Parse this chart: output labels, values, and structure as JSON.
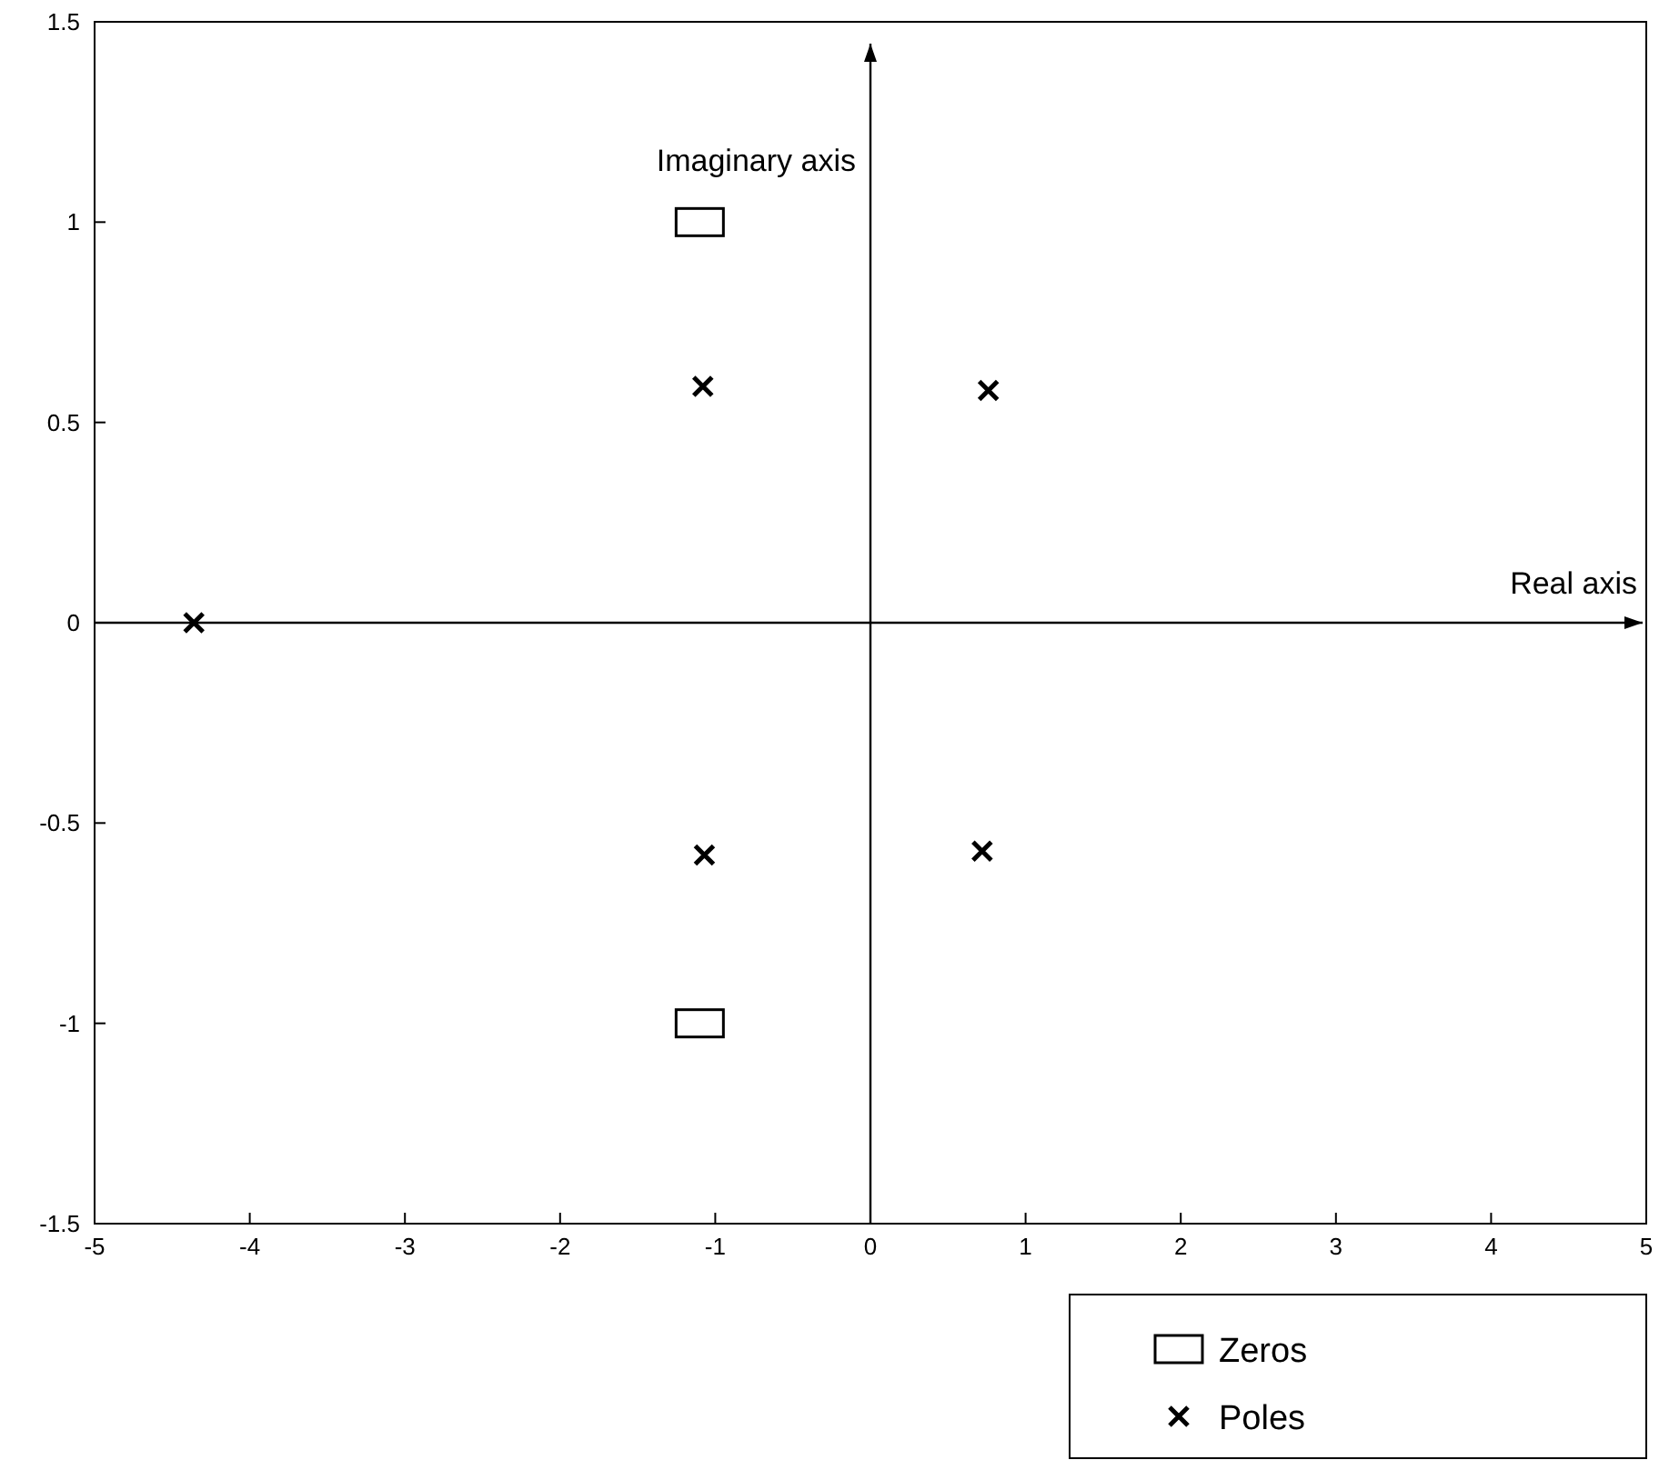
{
  "chart_data": {
    "type": "scatter",
    "xlim": [
      -5,
      5
    ],
    "ylim": [
      -1.5,
      1.5
    ],
    "xticks": [
      -5,
      -4,
      -3,
      -2,
      -1,
      0,
      1,
      2,
      3,
      4,
      5
    ],
    "yticks": [
      -1.5,
      -1,
      -0.5,
      0,
      0.5,
      1,
      1.5
    ],
    "grid": false,
    "legend": "bottom right",
    "series": [
      {
        "name": "Zeros",
        "color": "#000000",
        "marker": "square",
        "x": [
          -1.1,
          -1.1
        ],
        "values": [
          1,
          -1
        ]
      },
      {
        "name": "Poles",
        "color": "#000000",
        "marker": "cross",
        "x": [
          -1.08,
          0.76,
          -4.36,
          -1.07,
          0.72
        ],
        "values": [
          0.59,
          0.58,
          0,
          -0.58,
          -0.57
        ]
      }
    ],
    "ref_lines": [
      {
        "axis": "y",
        "value": 0,
        "label": "Real axis"
      },
      {
        "axis": "x",
        "value": 0,
        "label": "Imaginary axis"
      }
    ]
  }
}
